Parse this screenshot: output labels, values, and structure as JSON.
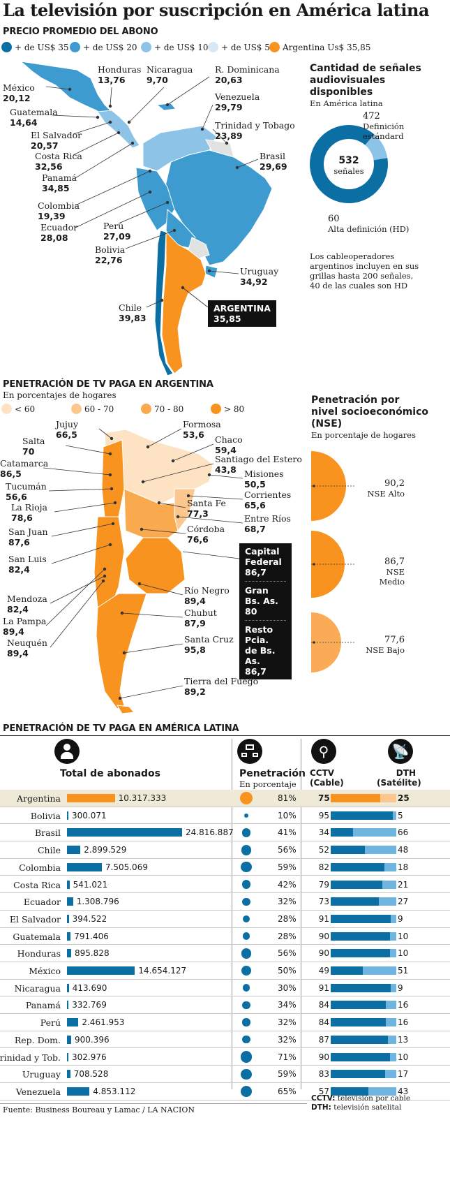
{
  "title": "La televisión por suscripción en América latina",
  "map1": {
    "heading": "PRECIO PROMEDIO DEL ABONO",
    "legend": [
      {
        "label": "+ de US$ 35",
        "color": "#0b6fa4"
      },
      {
        "label": "+ de US$ 20",
        "color": "#3d9bd0"
      },
      {
        "label": "+ de US$ 10",
        "color": "#8cc3e6"
      },
      {
        "label": "+ de US$ 5",
        "color": "#d7e9f6"
      },
      {
        "label": "Argentina Us$ 35,85",
        "color": "#f7931e"
      }
    ],
    "countries": [
      {
        "name": "México",
        "value": "20,12"
      },
      {
        "name": "Honduras",
        "value": "13,76"
      },
      {
        "name": "Nicaragua",
        "value": "9,70"
      },
      {
        "name": "R. Dominicana",
        "value": "20,63"
      },
      {
        "name": "Guatemala",
        "value": "14,64"
      },
      {
        "name": "Venezuela",
        "value": "29,79"
      },
      {
        "name": "El Salvador",
        "value": "20,57"
      },
      {
        "name": "Trinidad y Tobago",
        "value": "23,89"
      },
      {
        "name": "Costa Rica",
        "value": "32,56"
      },
      {
        "name": "Brasil",
        "value": "29,69"
      },
      {
        "name": "Panamá",
        "value": "34,85"
      },
      {
        "name": "Colombia",
        "value": "19,39"
      },
      {
        "name": "Ecuador",
        "value": "28,08"
      },
      {
        "name": "Perú",
        "value": "27,09"
      },
      {
        "name": "Bolivia",
        "value": "22,76"
      },
      {
        "name": "Uruguay",
        "value": "34,92"
      },
      {
        "name": "Chile",
        "value": "39,83"
      },
      {
        "name": "ARGENTINA",
        "value": "35,85"
      }
    ]
  },
  "signals": {
    "title": "Cantidad de señales audiovisuales disponibles",
    "title_lines": [
      "Cantidad de señales",
      "audiovisuales",
      "disponibles"
    ],
    "subtitle": "En América latina",
    "total": "532",
    "total_label": "señales",
    "sd_value": "472",
    "sd_label_lines": [
      "Definición",
      "estándard"
    ],
    "hd_value": "60",
    "hd_label": "Alta definición (HD)",
    "note_lines": [
      "Los cableoperadores",
      "argentinos incluyen en sus",
      "grillas hasta 200 señales,",
      "40 de las cuales son HD"
    ]
  },
  "map2": {
    "heading": "PENETRACIÓN DE TV PAGA EN ARGENTINA",
    "subtitle": "En porcentajes de hogares",
    "legend": [
      {
        "label": "< 60",
        "color": "#fde2c4"
      },
      {
        "label": "60 - 70",
        "color": "#fbc78f"
      },
      {
        "label": "70 - 80",
        "color": "#f9a94e"
      },
      {
        "label": "> 80",
        "color": "#f7931e"
      }
    ],
    "provinces": [
      {
        "name": "Jujuy",
        "value": "66,5"
      },
      {
        "name": "Formosa",
        "value": "53,6"
      },
      {
        "name": "Salta",
        "value": "70"
      },
      {
        "name": "Chaco",
        "value": "59,4"
      },
      {
        "name": "Catamarca",
        "value": "86,5"
      },
      {
        "name": "Santiago del Estero",
        "value": "43,8"
      },
      {
        "name": "Tucumán",
        "value": "56,6"
      },
      {
        "name": "Misiones",
        "value": "50,5"
      },
      {
        "name": "La Rioja",
        "value": "78,6"
      },
      {
        "name": "Corrientes",
        "value": "65,6"
      },
      {
        "name": "Santa Fe",
        "value": "77,3"
      },
      {
        "name": "San Juan",
        "value": "87,6"
      },
      {
        "name": "Entre Ríos",
        "value": "68,7"
      },
      {
        "name": "Córdoba",
        "value": "76,6"
      },
      {
        "name": "San Luis",
        "value": "82,4"
      },
      {
        "name": "Río Negro",
        "value": "89,4"
      },
      {
        "name": "Mendoza",
        "value": "82,4"
      },
      {
        "name": "Chubut",
        "value": "87,9"
      },
      {
        "name": "La Pampa",
        "value": "89,4"
      },
      {
        "name": "Neuquén",
        "value": "89,4"
      },
      {
        "name": "Santa Cruz",
        "value": "95,8"
      },
      {
        "name": "Tierra del Fuego",
        "value": "89,2"
      }
    ],
    "box": [
      {
        "lines": [
          "Capital",
          "Federal"
        ],
        "value": "86,7"
      },
      {
        "lines": [
          "Gran",
          "Bs. As."
        ],
        "value": "80"
      },
      {
        "lines": [
          "Resto Pcia.",
          "de Bs. As."
        ],
        "value": "86,7"
      }
    ]
  },
  "nse": {
    "title_lines": [
      "Penetración por",
      "nivel socioeconómico",
      "(NSE)"
    ],
    "subtitle": "En porcentaje de hogares",
    "items": [
      {
        "value": "90,2",
        "label": "NSE Alto",
        "color": "#f7931e"
      },
      {
        "value": "86,7",
        "label": "NSE Medio",
        "color": "#f7931e"
      },
      {
        "value": "77,6",
        "label": "NSE Bajo",
        "color": "#f9ab55"
      }
    ]
  },
  "table": {
    "heading": "PENETRACIÓN DE TV PAGA EN AMÉRICA LATINA",
    "col_total": "Total de abonados",
    "col_pen": "Penetración",
    "col_pen_sub": "En porcentaje",
    "col_cctv_lines": [
      "CCTV",
      "(Cable)"
    ],
    "col_dth_lines": [
      "DTH",
      "(Satélite)"
    ],
    "rows": [
      {
        "country": "Argentina",
        "subs": 10317333,
        "subs_label": "10.317.333",
        "pen": 81,
        "pen_label": "81%",
        "cctv": 75,
        "dth": 25
      },
      {
        "country": "Bolivia",
        "subs": 300071,
        "subs_label": "300.071",
        "pen": 10,
        "pen_label": "10%",
        "cctv": 95,
        "dth": 5
      },
      {
        "country": "Brasil",
        "subs": 24816887,
        "subs_label": "24.816.887",
        "pen": 41,
        "pen_label": "41%",
        "cctv": 34,
        "dth": 66
      },
      {
        "country": "Chile",
        "subs": 2899529,
        "subs_label": "2.899.529",
        "pen": 56,
        "pen_label": "56%",
        "cctv": 52,
        "dth": 48
      },
      {
        "country": "Colombia",
        "subs": 7505069,
        "subs_label": "7.505.069",
        "pen": 59,
        "pen_label": "59%",
        "cctv": 82,
        "dth": 18
      },
      {
        "country": "Costa Rica",
        "subs": 541021,
        "subs_label": "541.021",
        "pen": 42,
        "pen_label": "42%",
        "cctv": 79,
        "dth": 21
      },
      {
        "country": "Ecuador",
        "subs": 1308796,
        "subs_label": "1.308.796",
        "pen": 32,
        "pen_label": "32%",
        "cctv": 73,
        "dth": 27
      },
      {
        "country": "El Salvador",
        "subs": 394522,
        "subs_label": "394.522",
        "pen": 28,
        "pen_label": "28%",
        "cctv": 91,
        "dth": 9
      },
      {
        "country": "Guatemala",
        "subs": 791406,
        "subs_label": "791.406",
        "pen": 28,
        "pen_label": "28%",
        "cctv": 90,
        "dth": 10
      },
      {
        "country": "Honduras",
        "subs": 895828,
        "subs_label": "895.828",
        "pen": 56,
        "pen_label": "56%",
        "cctv": 90,
        "dth": 10
      },
      {
        "country": "México",
        "subs": 14654127,
        "subs_label": "14.654.127",
        "pen": 50,
        "pen_label": "50%",
        "cctv": 49,
        "dth": 51
      },
      {
        "country": "Nicaragua",
        "subs": 413690,
        "subs_label": "413.690",
        "pen": 30,
        "pen_label": "30%",
        "cctv": 91,
        "dth": 9
      },
      {
        "country": "Panamá",
        "subs": 332769,
        "subs_label": "332.769",
        "pen": 34,
        "pen_label": "34%",
        "cctv": 84,
        "dth": 16
      },
      {
        "country": "Perú",
        "subs": 2461953,
        "subs_label": "2.461.953",
        "pen": 32,
        "pen_label": "32%",
        "cctv": 84,
        "dth": 16
      },
      {
        "country": "Rep. Dom.",
        "subs": 900396,
        "subs_label": "900.396",
        "pen": 32,
        "pen_label": "32%",
        "cctv": 87,
        "dth": 13
      },
      {
        "country": "Trinidad y Tob.",
        "subs": 302976,
        "subs_label": "302.976",
        "pen": 71,
        "pen_label": "71%",
        "cctv": 90,
        "dth": 10
      },
      {
        "country": "Uruguay",
        "subs": 708528,
        "subs_label": "708.528",
        "pen": 59,
        "pen_label": "59%",
        "cctv": 83,
        "dth": 17
      },
      {
        "country": "Venezuela",
        "subs": 4853112,
        "subs_label": "4.853.112",
        "pen": 65,
        "pen_label": "65%",
        "cctv": 57,
        "dth": 43
      }
    ],
    "note_lines": [
      "CCTV: televisión por cable",
      "DTH: televisión satelital"
    ]
  },
  "chart_data": {
    "type": "bar",
    "categories": [
      "Argentina",
      "Bolivia",
      "Brasil",
      "Chile",
      "Colombia",
      "Costa Rica",
      "Ecuador",
      "El Salvador",
      "Guatemala",
      "Honduras",
      "México",
      "Nicaragua",
      "Panamá",
      "Perú",
      "Rep. Dom.",
      "Trinidad y Tob.",
      "Uruguay",
      "Venezuela"
    ],
    "series": [
      {
        "name": "Total de abonados",
        "values": [
          10317333,
          300071,
          24816887,
          2899529,
          7505069,
          541021,
          1308796,
          394522,
          791406,
          895828,
          14654127,
          413690,
          332769,
          2461953,
          900396,
          302976,
          708528,
          4853112
        ]
      },
      {
        "name": "Penetración",
        "values": [
          81,
          10,
          41,
          56,
          59,
          42,
          32,
          28,
          28,
          56,
          50,
          30,
          34,
          32,
          32,
          71,
          59,
          65
        ]
      },
      {
        "name": "CCTV (Cable)",
        "values": [
          75,
          95,
          34,
          52,
          82,
          79,
          73,
          91,
          90,
          90,
          49,
          91,
          84,
          84,
          87,
          90,
          83,
          57
        ]
      },
      {
        "name": "DTH (Satélite)",
        "values": [
          25,
          5,
          66,
          48,
          18,
          21,
          27,
          9,
          10,
          10,
          51,
          9,
          16,
          16,
          13,
          10,
          17,
          43
        ]
      }
    ],
    "title": "PENETRACIÓN DE TV PAGA EN AMÉRICA LATINA"
  },
  "footer": "Fuente: Business Boureau y Lamac / LA NACION",
  "colors": {
    "dark_blue": "#0b6fa4",
    "mid_blue": "#3d9bd0",
    "light_blue": "#8cc3e6",
    "orange": "#f7931e",
    "highlight_row": "#efe9d7"
  }
}
